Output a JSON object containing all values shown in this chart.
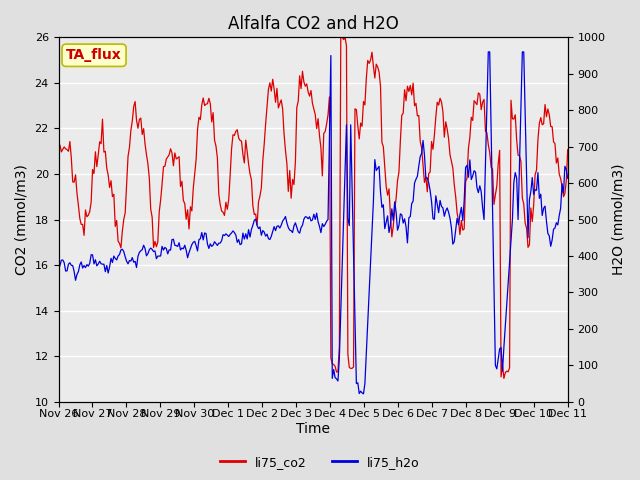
{
  "title": "Alfalfa CO2 and H2O",
  "xlabel": "Time",
  "ylabel_left": "CO2 (mmol/m3)",
  "ylabel_right": "H2O (mmol/m3)",
  "annotation_text": "TA_flux",
  "annotation_bg": "#ffffcc",
  "annotation_edge": "#bbbb00",
  "annotation_text_color": "#cc0000",
  "co2_color": "#dd0000",
  "h2o_color": "#0000dd",
  "co2_lw": 0.9,
  "h2o_lw": 0.9,
  "ylim_left": [
    10,
    26
  ],
  "ylim_right": [
    0,
    1000
  ],
  "fig_bg_color": "#e0e0e0",
  "plot_bg_color": "#ebebeb",
  "xtick_labels": [
    "Nov 26",
    "Nov 27",
    "Nov 28",
    "Nov 29",
    "Nov 30",
    "Dec 1",
    "Dec 2",
    "Dec 3",
    "Dec 4",
    "Dec 5",
    "Dec 6",
    "Dec 7",
    "Dec 8",
    "Dec 9",
    "Dec 10",
    "Dec 11"
  ],
  "title_fontsize": 12,
  "axis_label_fontsize": 10,
  "tick_fontsize": 8,
  "legend_fontsize": 9
}
